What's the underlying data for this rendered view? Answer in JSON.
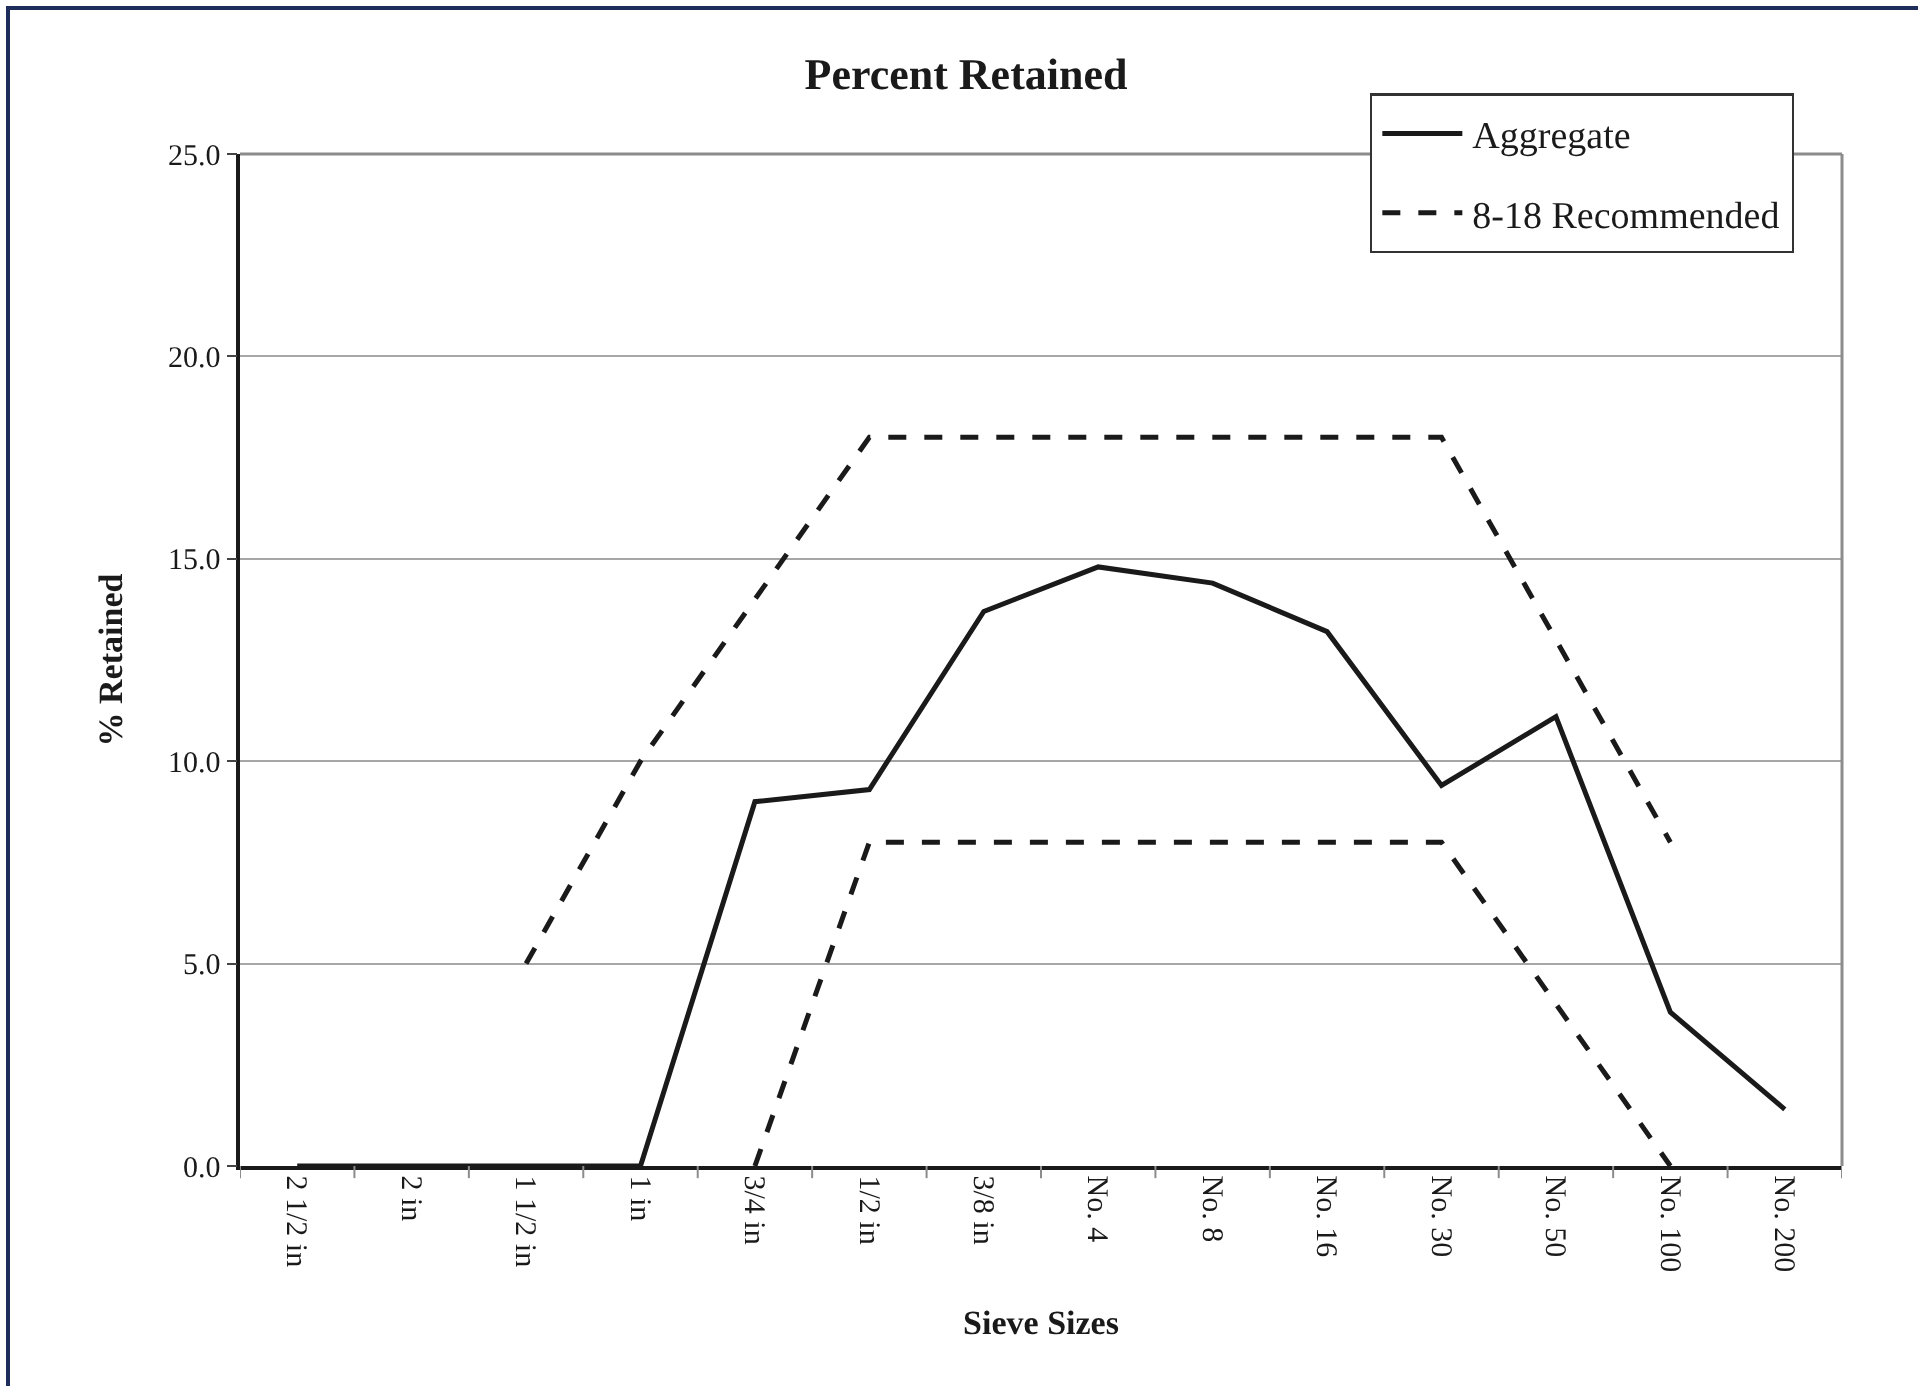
{
  "chart_data": {
    "type": "line",
    "title": "Percent Retained",
    "xlabel": "Sieve Sizes",
    "ylabel": "% Retained",
    "categories": [
      "2 1/2 in",
      "2 in",
      "1 1/2 in",
      "1 in",
      "3/4 in",
      "1/2 in",
      "3/8 in",
      "No. 4",
      "No. 8",
      "No. 16",
      "No. 30",
      "No. 50",
      "No. 100",
      "No. 200"
    ],
    "series": [
      {
        "name": "Aggregate",
        "color": "#1a1a1a",
        "line_style": "solid",
        "values": [
          0,
          0,
          0,
          0,
          9.0,
          9.3,
          13.7,
          14.8,
          14.4,
          13.2,
          9.4,
          11.1,
          3.8,
          1.4
        ]
      },
      {
        "name": "8-18 Recommended",
        "color": "#1a1a1a",
        "line_style": "dashed",
        "values": [
          null,
          null,
          5,
          10,
          14,
          18,
          18,
          18,
          18,
          18,
          18,
          13,
          8,
          null
        ]
      },
      {
        "color": "#1a1a1a",
        "line_style": "dashed",
        "values": [
          null,
          null,
          null,
          null,
          0,
          8,
          8,
          8,
          8,
          8,
          8,
          4,
          0,
          null
        ]
      }
    ],
    "ylim": [
      0,
      25
    ],
    "yticks": [
      {
        "value": 0,
        "label": "0.0"
      },
      {
        "value": 5,
        "label": "5.0"
      },
      {
        "value": 10,
        "label": "10.0"
      },
      {
        "value": 15,
        "label": "15.0"
      },
      {
        "value": 20,
        "label": "20.0"
      },
      {
        "value": 25,
        "label": "25.0"
      }
    ],
    "grid": "y",
    "legend": "top right",
    "marker": "none"
  }
}
